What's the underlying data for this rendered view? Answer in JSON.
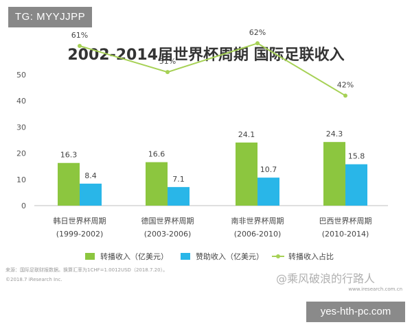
{
  "overlay_tag": "TG: MYYJJPP",
  "chart_data": {
    "type": "bar",
    "title": "2002-2014届世界杯周期 国际足联收入",
    "categories": [
      "韩日世界杯周期",
      "德国世界杯周期",
      "南非世界杯周期",
      "巴西世界杯周期"
    ],
    "category_sublabels": [
      "(1999-2002)",
      "(2003-2006)",
      "(2006-2010)",
      "(2010-2014)"
    ],
    "ylim": [
      0,
      50
    ],
    "yticks": [
      0,
      10,
      20,
      30,
      40,
      50
    ],
    "series": [
      {
        "name": "转播收入（亿美元）",
        "type": "bar",
        "color": "#8cc63f",
        "values": [
          16.3,
          16.6,
          24.1,
          24.3
        ]
      },
      {
        "name": "赞助收入（亿美元）",
        "type": "bar",
        "color": "#29b6e8",
        "values": [
          8.4,
          7.1,
          10.7,
          15.8
        ]
      },
      {
        "name": "转播收入占比",
        "type": "line",
        "color": "#a6d155",
        "values": [
          61,
          51,
          62,
          42
        ],
        "labels": [
          "61%",
          "51%",
          "62%",
          "42%"
        ]
      }
    ],
    "grid": false,
    "legend": "bottom"
  },
  "footer": {
    "source": "来源：国际足联财报数据。换算汇率为1CHF=1.0012USD（2018.7.20）。",
    "copyright": "©2018.7 iResearch Inc.",
    "site": "www.iresearch.com.cn"
  },
  "watermark": "@乘风破浪的行路人",
  "domain_tag": "yes-hth-pc.com"
}
